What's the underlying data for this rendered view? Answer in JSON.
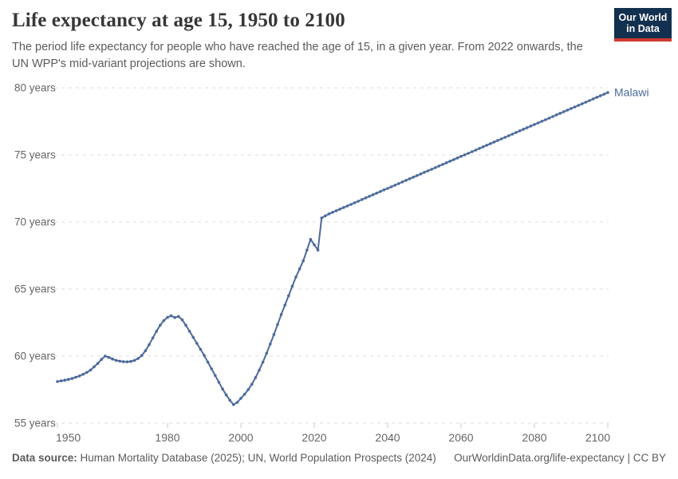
{
  "header": {
    "title": "Life expectancy at age 15, 1950 to 2100",
    "subtitle": "The period life expectancy for people who have reached the age of 15, in a given year. From 2022 onwards, the UN WPP's mid-variant projections are shown."
  },
  "logo": {
    "line1": "Our World",
    "line2": "in Data",
    "bg_color": "#12304f",
    "stripe_color": "#d0392e"
  },
  "footer": {
    "datasource_label": "Data source:",
    "datasource_text": " Human Mortality Database (2025); UN, World Population Prospects (2024)",
    "attribution": "OurWorldinData.org/life-expectancy | CC BY"
  },
  "chart_data": {
    "type": "line",
    "title": "Life expectancy at age 15, 1950 to 2100",
    "xlabel": "",
    "ylabel": "",
    "xlim": [
      1950,
      2100
    ],
    "ylim": [
      55,
      80
    ],
    "x_ticks": [
      1950,
      1980,
      2000,
      2020,
      2040,
      2060,
      2080,
      2100
    ],
    "y_ticks": [
      55,
      60,
      65,
      70,
      75,
      80
    ],
    "y_tick_suffix": " years",
    "grid": "horizontal-dashed",
    "grid_color": "#dcdcdc",
    "tick_color": "#c8c8c8",
    "axis_text_color": "#666666",
    "legend_position": "end-of-line-label",
    "markers": "point-per-year",
    "series": [
      {
        "name": "Malawi",
        "color": "#4c6a9c",
        "x_start": 1950,
        "x_step": 1,
        "x_end": 2100,
        "values": [
          58.1,
          58.15,
          58.2,
          58.26,
          58.33,
          58.42,
          58.52,
          58.64,
          58.78,
          58.95,
          59.2,
          59.45,
          59.75,
          60.0,
          59.9,
          59.78,
          59.68,
          59.62,
          59.58,
          59.57,
          59.6,
          59.68,
          59.82,
          60.05,
          60.4,
          60.85,
          61.35,
          61.85,
          62.3,
          62.65,
          62.88,
          63.0,
          62.87,
          62.95,
          62.7,
          62.3,
          61.85,
          61.4,
          60.95,
          60.5,
          60.05,
          59.55,
          59.05,
          58.55,
          58.05,
          57.55,
          57.1,
          56.7,
          56.38,
          56.55,
          56.85,
          57.15,
          57.5,
          57.9,
          58.4,
          58.95,
          59.55,
          60.2,
          60.9,
          61.6,
          62.35,
          63.1,
          63.8,
          64.5,
          65.2,
          65.9,
          66.5,
          67.1,
          67.9,
          68.7,
          68.3,
          67.9,
          70.3,
          70.45,
          70.6,
          70.72,
          70.84,
          70.96,
          71.08,
          71.19,
          71.31,
          71.43,
          71.55,
          71.67,
          71.79,
          71.91,
          72.03,
          72.15,
          72.27,
          72.39,
          72.5,
          72.62,
          72.74,
          72.86,
          72.98,
          73.1,
          73.22,
          73.34,
          73.46,
          73.58,
          73.7,
          73.81,
          73.93,
          74.05,
          74.17,
          74.29,
          74.41,
          74.53,
          74.65,
          74.77,
          74.89,
          75.0,
          75.12,
          75.24,
          75.36,
          75.48,
          75.6,
          75.72,
          75.84,
          75.96,
          76.08,
          76.19,
          76.31,
          76.43,
          76.55,
          76.67,
          76.79,
          76.91,
          77.03,
          77.15,
          77.27,
          77.38,
          77.5,
          77.62,
          77.74,
          77.86,
          77.98,
          78.1,
          78.22,
          78.34,
          78.46,
          78.57,
          78.69,
          78.81,
          78.93,
          79.05,
          79.17,
          79.29,
          79.41,
          79.53,
          79.65
        ]
      }
    ],
    "annotations": [
      {
        "text": "Malawi",
        "position": "right-end-of-line"
      }
    ]
  }
}
